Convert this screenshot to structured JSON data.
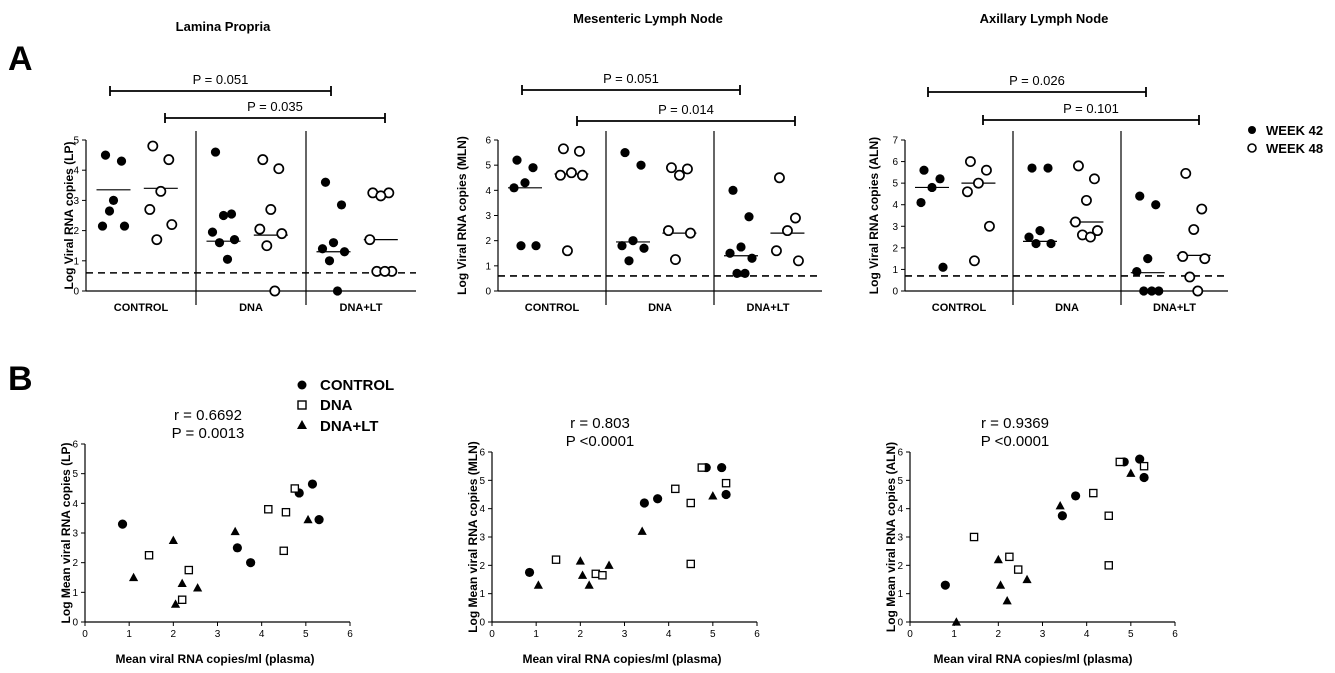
{
  "panel_labels": {
    "a": "A",
    "b": "B"
  },
  "tissues": [
    "Lamina Propria",
    "Mesenteric Lymph Node",
    "Axillary Lymph Node"
  ],
  "legend_a": {
    "week42": "WEEK 42",
    "week48": "WEEK 48"
  },
  "legend_b": {
    "control": "CONTROL",
    "dna": "DNA",
    "dnalt": "DNA+LT"
  },
  "xlabel_b": "Mean viral RNA copies/ml (plasma)",
  "chart_data": [
    {
      "type": "scatter",
      "title": "Lamina Propria",
      "ylabel": "Log Viral RNA copies (LP)",
      "ylim": [
        0,
        5
      ],
      "yticks": [
        "0",
        "1",
        "2",
        "3",
        "4",
        "5"
      ],
      "groups": [
        "CONTROL",
        "DNA",
        "DNA+LT"
      ],
      "detection_limit": 0.6,
      "series": [
        {
          "name": "WEEK 42",
          "values": [
            [
              4.5,
              4.3,
              3.0,
              2.15,
              2.15,
              2.65
            ],
            [
              4.6,
              2.55,
              2.5,
              1.95,
              1.7,
              1.6,
              1.05
            ],
            [
              3.6,
              2.85,
              1.6,
              1.4,
              1.3,
              1.0,
              0.0
            ]
          ],
          "medians": [
            3.35,
            1.65,
            1.3
          ]
        },
        {
          "name": "WEEK 48",
          "values": [
            [
              4.8,
              4.35,
              3.3,
              2.7,
              2.2,
              1.7
            ],
            [
              4.35,
              4.05,
              2.7,
              2.05,
              1.9,
              1.5,
              0.0
            ],
            [
              3.25,
              3.25,
              3.15,
              1.7,
              0.65,
              0.65,
              0.65
            ]
          ],
          "medians": [
            3.4,
            1.85,
            1.7
          ]
        }
      ],
      "comparisons": [
        {
          "label": "P = 0.051",
          "from": "CONTROL WEEK 42",
          "to": "DNA+LT WEEK 42"
        },
        {
          "label": "P = 0.035",
          "from": "CONTROL WEEK 48",
          "to": "DNA+LT WEEK 48"
        }
      ]
    },
    {
      "type": "scatter",
      "title": "Mesenteric Lymph Node",
      "ylabel": "Log Viral RNA copies (MLN)",
      "ylim": [
        0,
        6
      ],
      "yticks": [
        "0",
        "1",
        "2",
        "3",
        "4",
        "5",
        "6"
      ],
      "groups": [
        "CONTROL",
        "DNA",
        "DNA+LT"
      ],
      "detection_limit": 0.6,
      "series": [
        {
          "name": "WEEK 42",
          "values": [
            [
              5.2,
              4.9,
              4.3,
              4.1,
              1.8,
              1.8
            ],
            [
              5.5,
              5.0,
              2.0,
              1.8,
              1.7,
              1.2
            ],
            [
              4.0,
              2.95,
              1.75,
              1.5,
              1.3,
              0.7,
              0.7
            ]
          ],
          "medians": [
            4.1,
            1.95,
            1.4
          ]
        },
        {
          "name": "WEEK 48",
          "values": [
            [
              5.65,
              5.55,
              4.7,
              4.6,
              4.6,
              1.6
            ],
            [
              4.9,
              4.85,
              4.6,
              2.4,
              2.3,
              1.25
            ],
            [
              4.5,
              2.9,
              2.4,
              1.6,
              1.2
            ]
          ],
          "medians": [
            4.65,
            2.3,
            2.3
          ]
        }
      ],
      "comparisons": [
        {
          "label": "P = 0.051",
          "from": "CONTROL WEEK 42",
          "to": "DNA+LT WEEK 42"
        },
        {
          "label": "P = 0.014",
          "from": "CONTROL WEEK 48",
          "to": "DNA+LT WEEK 48"
        }
      ]
    },
    {
      "type": "scatter",
      "title": "Axillary Lymph Node",
      "ylabel": "Log Viral RNA copies (ALN)",
      "ylim": [
        0,
        7
      ],
      "yticks": [
        "0",
        "1",
        "2",
        "3",
        "4",
        "5",
        "6",
        "7"
      ],
      "groups": [
        "CONTROL",
        "DNA",
        "DNA+LT"
      ],
      "detection_limit": 0.7,
      "series": [
        {
          "name": "WEEK 42",
          "values": [
            [
              5.6,
              5.2,
              4.8,
              4.1,
              1.1
            ],
            [
              5.7,
              5.7,
              2.8,
              2.5,
              2.2,
              2.2
            ],
            [
              4.4,
              4.0,
              1.5,
              0.9,
              0.0,
              0.0,
              0.0
            ]
          ],
          "medians": [
            4.8,
            2.3,
            0.85
          ]
        },
        {
          "name": "WEEK 48",
          "values": [
            [
              6.0,
              5.6,
              5.0,
              4.6,
              3.0,
              1.4
            ],
            [
              5.8,
              5.2,
              4.2,
              3.2,
              2.8,
              2.6,
              2.5
            ],
            [
              5.45,
              3.8,
              2.85,
              1.6,
              1.5,
              0.65,
              0.0
            ]
          ],
          "medians": [
            5.0,
            3.2,
            1.65
          ]
        }
      ],
      "comparisons": [
        {
          "label": "P = 0.026",
          "from": "CONTROL WEEK 42",
          "to": "DNA+LT WEEK 42"
        },
        {
          "label": "P = 0.101",
          "from": "CONTROL WEEK 48",
          "to": "DNA+LT WEEK 48"
        }
      ]
    },
    {
      "type": "scatter",
      "xlabel": "Mean viral RNA copies/ml (plasma)",
      "ylabel": "Log Mean viral RNA copies (LP)",
      "xlim": [
        0,
        6
      ],
      "ylim": [
        0,
        6
      ],
      "xticks": [
        "0",
        "1",
        "2",
        "3",
        "4",
        "5",
        "6"
      ],
      "yticks": [
        "0",
        "1",
        "2",
        "3",
        "4",
        "5",
        "6"
      ],
      "r_label": "r = 0.6692",
      "p_label": "P = 0.0013",
      "series": [
        {
          "name": "CONTROL",
          "points": [
            [
              0.85,
              3.3
            ],
            [
              3.45,
              2.5
            ],
            [
              3.75,
              2.0
            ],
            [
              4.85,
              4.35
            ],
            [
              5.15,
              4.65
            ],
            [
              5.3,
              3.45
            ]
          ]
        },
        {
          "name": "DNA",
          "points": [
            [
              1.45,
              2.25
            ],
            [
              2.2,
              0.75
            ],
            [
              2.35,
              1.75
            ],
            [
              4.15,
              3.8
            ],
            [
              4.55,
              3.7
            ],
            [
              4.5,
              2.4
            ],
            [
              4.75,
              4.5
            ]
          ]
        },
        {
          "name": "DNA+LT",
          "points": [
            [
              1.1,
              1.5
            ],
            [
              2.0,
              2.75
            ],
            [
              2.05,
              0.6
            ],
            [
              2.2,
              1.3
            ],
            [
              2.55,
              1.15
            ],
            [
              3.4,
              3.05
            ],
            [
              5.05,
              3.45
            ]
          ]
        }
      ]
    },
    {
      "type": "scatter",
      "xlabel": "Mean viral RNA copies/ml (plasma)",
      "ylabel": "Log Mean viral RNA copies (MLN)",
      "xlim": [
        0,
        6
      ],
      "ylim": [
        0,
        6
      ],
      "xticks": [
        "0",
        "1",
        "2",
        "3",
        "4",
        "5",
        "6"
      ],
      "yticks": [
        "0",
        "1",
        "2",
        "3",
        "4",
        "5",
        "6"
      ],
      "r_label": "r = 0.803",
      "p_label": "P <0.0001",
      "series": [
        {
          "name": "CONTROL",
          "points": [
            [
              0.85,
              1.75
            ],
            [
              3.45,
              4.2
            ],
            [
              3.75,
              4.35
            ],
            [
              4.85,
              5.45
            ],
            [
              5.2,
              5.45
            ],
            [
              5.3,
              4.5
            ]
          ]
        },
        {
          "name": "DNA",
          "points": [
            [
              1.45,
              2.2
            ],
            [
              2.35,
              1.7
            ],
            [
              2.5,
              1.65
            ],
            [
              4.15,
              4.7
            ],
            [
              4.5,
              4.2
            ],
            [
              4.5,
              2.05
            ],
            [
              4.75,
              5.45
            ],
            [
              5.3,
              4.9
            ]
          ]
        },
        {
          "name": "DNA+LT",
          "points": [
            [
              1.05,
              1.3
            ],
            [
              2.0,
              2.15
            ],
            [
              2.05,
              1.65
            ],
            [
              2.2,
              1.3
            ],
            [
              2.65,
              2.0
            ],
            [
              3.4,
              3.2
            ],
            [
              5.0,
              4.45
            ]
          ]
        }
      ]
    },
    {
      "type": "scatter",
      "xlabel": "Mean viral RNA copies/ml (plasma)",
      "ylabel": "Log Mean viral RNA copies  (ALN)",
      "xlim": [
        0,
        6
      ],
      "ylim": [
        0,
        6
      ],
      "xticks": [
        "0",
        "1",
        "2",
        "3",
        "4",
        "5",
        "6"
      ],
      "yticks": [
        "0",
        "1",
        "2",
        "3",
        "4",
        "5",
        "6"
      ],
      "r_label": "r = 0.9369",
      "p_label": "P <0.0001",
      "series": [
        {
          "name": "CONTROL",
          "points": [
            [
              0.8,
              1.3
            ],
            [
              3.45,
              3.75
            ],
            [
              3.75,
              4.45
            ],
            [
              4.85,
              5.65
            ],
            [
              5.2,
              5.75
            ],
            [
              5.3,
              5.1
            ]
          ]
        },
        {
          "name": "DNA",
          "points": [
            [
              1.45,
              3.0
            ],
            [
              2.25,
              2.3
            ],
            [
              2.45,
              1.85
            ],
            [
              4.15,
              4.55
            ],
            [
              4.5,
              3.75
            ],
            [
              4.5,
              2.0
            ],
            [
              4.75,
              5.65
            ],
            [
              5.3,
              5.5
            ]
          ]
        },
        {
          "name": "DNA+LT",
          "points": [
            [
              1.05,
              0.0
            ],
            [
              2.0,
              2.2
            ],
            [
              2.05,
              1.3
            ],
            [
              2.2,
              0.75
            ],
            [
              2.65,
              1.5
            ],
            [
              3.4,
              4.1
            ],
            [
              5.0,
              5.25
            ]
          ]
        }
      ]
    }
  ]
}
